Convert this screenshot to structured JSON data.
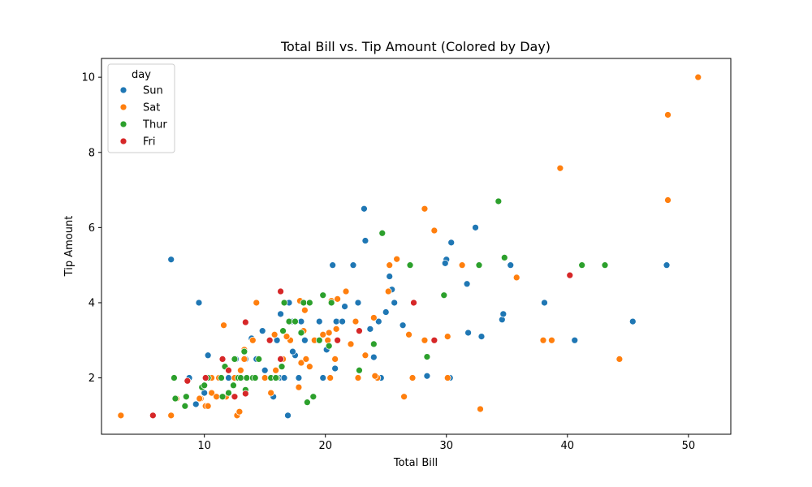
{
  "chart_data": {
    "type": "scatter",
    "title": "Total Bill vs. Tip Amount (Colored by Day)",
    "xlabel": "Total Bill",
    "ylabel": "Tip Amount",
    "xlim": [
      1.5,
      53.5
    ],
    "ylim": [
      0.5,
      10.5
    ],
    "xticks": [
      10,
      20,
      30,
      40,
      50
    ],
    "yticks": [
      2,
      4,
      6,
      8,
      10
    ],
    "grid": false,
    "legend": {
      "title": "day",
      "placement": "top-left"
    },
    "series": [
      {
        "name": "Sun",
        "color": "#1f77b4",
        "points": [
          [
            7.25,
            5.15
          ],
          [
            9.55,
            4.0
          ],
          [
            8.75,
            2.0
          ],
          [
            10.3,
            2.6
          ],
          [
            12.6,
            2.5
          ],
          [
            13.9,
            3.05
          ],
          [
            14.8,
            3.25
          ],
          [
            16.0,
            3.0
          ],
          [
            16.3,
            3.7
          ],
          [
            17.0,
            4.0
          ],
          [
            17.3,
            3.5
          ],
          [
            18.0,
            3.5
          ],
          [
            19.5,
            3.5
          ],
          [
            21.0,
            3.5
          ],
          [
            21.6,
            3.9
          ],
          [
            22.3,
            5.0
          ],
          [
            20.6,
            5.0
          ],
          [
            23.2,
            6.5
          ],
          [
            23.3,
            5.65
          ],
          [
            25.3,
            4.7
          ],
          [
            25.5,
            4.35
          ],
          [
            30.0,
            5.15
          ],
          [
            30.4,
            5.6
          ],
          [
            31.7,
            4.5
          ],
          [
            32.4,
            6.0
          ],
          [
            35.3,
            5.0
          ],
          [
            34.6,
            3.55
          ],
          [
            34.7,
            3.7
          ],
          [
            38.1,
            4.0
          ],
          [
            40.6,
            3.0
          ],
          [
            45.4,
            3.5
          ],
          [
            48.2,
            5.0
          ],
          [
            16.9,
            1.0
          ],
          [
            15.7,
            1.5
          ],
          [
            11.0,
            1.5
          ],
          [
            10.0,
            1.6
          ],
          [
            9.3,
            1.3
          ],
          [
            12.5,
            2.0
          ],
          [
            14.0,
            2.0
          ],
          [
            16.2,
            2.0
          ],
          [
            17.8,
            2.0
          ],
          [
            19.8,
            2.0
          ],
          [
            20.8,
            2.25
          ],
          [
            24.5,
            2.0
          ],
          [
            28.4,
            2.05
          ],
          [
            30.3,
            2.0
          ],
          [
            31.8,
            3.2
          ],
          [
            32.9,
            3.1
          ],
          [
            24.0,
            2.55
          ],
          [
            23.7,
            3.3
          ],
          [
            24.4,
            3.5
          ],
          [
            25.0,
            3.75
          ],
          [
            20.1,
            2.75
          ],
          [
            18.3,
            3.0
          ],
          [
            17.5,
            2.6
          ],
          [
            13.4,
            2.5
          ],
          [
            14.3,
            2.5
          ],
          [
            26.4,
            3.4
          ],
          [
            20.9,
            3.5
          ],
          [
            15.4,
            3.0
          ],
          [
            16.6,
            2.0
          ],
          [
            29.9,
            5.05
          ],
          [
            24.6,
            2.0
          ],
          [
            14.1,
            2.0
          ],
          [
            25.7,
            4.0
          ],
          [
            13.0,
            2.0
          ],
          [
            17.3,
            2.7
          ],
          [
            12.0,
            2.0
          ],
          [
            21.4,
            3.5
          ],
          [
            28.2,
            3.0
          ],
          [
            22.7,
            4.0
          ],
          [
            15.0,
            2.2
          ]
        ]
      },
      {
        "name": "Sat",
        "color": "#ff7f0e",
        "points": [
          [
            3.1,
            1.0
          ],
          [
            7.25,
            1.0
          ],
          [
            7.7,
            1.45
          ],
          [
            9.7,
            1.45
          ],
          [
            10.1,
            1.25
          ],
          [
            10.6,
            1.6
          ],
          [
            10.3,
            1.25
          ],
          [
            11.0,
            1.5
          ],
          [
            12.7,
            1.0
          ],
          [
            12.9,
            1.1
          ],
          [
            10.6,
            2.0
          ],
          [
            11.2,
            2.0
          ],
          [
            11.6,
            3.4
          ],
          [
            12.5,
            2.0
          ],
          [
            13.3,
            2.75
          ],
          [
            13.3,
            2.5
          ],
          [
            14.3,
            4.0
          ],
          [
            15.0,
            2.0
          ],
          [
            15.4,
            3.0
          ],
          [
            15.8,
            3.15
          ],
          [
            16.4,
            2.5
          ],
          [
            16.5,
            2.5
          ],
          [
            17.1,
            3.0
          ],
          [
            17.5,
            3.5
          ],
          [
            17.9,
            4.05
          ],
          [
            18.3,
            3.8
          ],
          [
            18.0,
            2.4
          ],
          [
            18.4,
            2.5
          ],
          [
            18.7,
            2.3
          ],
          [
            19.8,
            3.15
          ],
          [
            20.3,
            3.2
          ],
          [
            20.5,
            4.05
          ],
          [
            20.4,
            2.0
          ],
          [
            20.8,
            2.5
          ],
          [
            20.9,
            3.3
          ],
          [
            21.0,
            4.1
          ],
          [
            21.7,
            4.3
          ],
          [
            22.1,
            2.9
          ],
          [
            22.5,
            3.5
          ],
          [
            22.7,
            2.0
          ],
          [
            23.3,
            2.6
          ],
          [
            24.0,
            3.6
          ],
          [
            24.3,
            2.0
          ],
          [
            25.2,
            4.3
          ],
          [
            25.3,
            5.0
          ],
          [
            25.9,
            5.16
          ],
          [
            26.5,
            1.5
          ],
          [
            26.9,
            3.15
          ],
          [
            27.2,
            2.0
          ],
          [
            27.3,
            4.0
          ],
          [
            28.2,
            6.5
          ],
          [
            28.2,
            3.0
          ],
          [
            29.0,
            5.92
          ],
          [
            30.1,
            3.1
          ],
          [
            30.1,
            2.0
          ],
          [
            31.3,
            5.0
          ],
          [
            32.8,
            1.17
          ],
          [
            35.8,
            4.67
          ],
          [
            38.0,
            3.0
          ],
          [
            38.7,
            3.0
          ],
          [
            39.4,
            7.58
          ],
          [
            44.3,
            2.5
          ],
          [
            48.3,
            6.73
          ],
          [
            48.3,
            9.0
          ],
          [
            50.8,
            10.0
          ],
          [
            15.5,
            1.6
          ],
          [
            13.0,
            2.2
          ],
          [
            17.8,
            1.75
          ],
          [
            16.8,
            3.1
          ],
          [
            14.0,
            3.0
          ],
          [
            19.1,
            3.0
          ],
          [
            9.6,
            1.45
          ],
          [
            11.8,
            1.5
          ],
          [
            13.4,
            1.58
          ],
          [
            24.1,
            2.05
          ],
          [
            20.2,
            3.0
          ],
          [
            15.9,
            2.2
          ],
          [
            18.2,
            3.25
          ]
        ]
      },
      {
        "name": "Thur",
        "color": "#2ca02c",
        "points": [
          [
            7.5,
            2.0
          ],
          [
            7.6,
            1.45
          ],
          [
            8.4,
            1.25
          ],
          [
            8.5,
            1.5
          ],
          [
            9.8,
            1.75
          ],
          [
            10.0,
            1.8
          ],
          [
            10.3,
            2.0
          ],
          [
            11.4,
            2.0
          ],
          [
            11.7,
            2.3
          ],
          [
            12.0,
            1.6
          ],
          [
            12.4,
            1.8
          ],
          [
            12.8,
            2.0
          ],
          [
            13.0,
            2.0
          ],
          [
            13.3,
            2.7
          ],
          [
            13.5,
            2.0
          ],
          [
            14.0,
            2.0
          ],
          [
            14.5,
            2.5
          ],
          [
            15.5,
            2.0
          ],
          [
            16.0,
            2.0
          ],
          [
            16.4,
            2.3
          ],
          [
            16.5,
            3.25
          ],
          [
            16.6,
            4.0
          ],
          [
            17.0,
            3.5
          ],
          [
            17.5,
            3.5
          ],
          [
            18.0,
            3.2
          ],
          [
            18.2,
            4.0
          ],
          [
            18.5,
            1.35
          ],
          [
            18.7,
            4.0
          ],
          [
            19.0,
            1.5
          ],
          [
            19.5,
            3.0
          ],
          [
            19.8,
            4.2
          ],
          [
            20.3,
            2.85
          ],
          [
            20.5,
            4.0
          ],
          [
            21.0,
            3.0
          ],
          [
            22.8,
            2.2
          ],
          [
            24.0,
            2.9
          ],
          [
            24.7,
            5.85
          ],
          [
            27.0,
            5.0
          ],
          [
            28.4,
            2.56
          ],
          [
            29.8,
            4.2
          ],
          [
            32.7,
            5.0
          ],
          [
            34.3,
            6.7
          ],
          [
            34.8,
            5.2
          ],
          [
            41.2,
            5.0
          ],
          [
            43.1,
            5.0
          ],
          [
            11.5,
            1.5
          ],
          [
            15.9,
            2.0
          ],
          [
            13.4,
            1.68
          ],
          [
            12.5,
            2.5
          ],
          [
            14.2,
            2.0
          ]
        ]
      },
      {
        "name": "Fri",
        "color": "#d62728",
        "points": [
          [
            5.75,
            1.0
          ],
          [
            8.6,
            1.92
          ],
          [
            10.1,
            2.0
          ],
          [
            11.5,
            2.5
          ],
          [
            12.0,
            2.2
          ],
          [
            12.5,
            1.5
          ],
          [
            13.4,
            1.58
          ],
          [
            13.4,
            3.48
          ],
          [
            16.3,
            4.3
          ],
          [
            16.3,
            2.5
          ],
          [
            21.0,
            3.0
          ],
          [
            22.8,
            3.25
          ],
          [
            27.3,
            4.0
          ],
          [
            29.0,
            3.0
          ],
          [
            40.2,
            4.73
          ],
          [
            15.4,
            3.0
          ]
        ]
      }
    ]
  }
}
